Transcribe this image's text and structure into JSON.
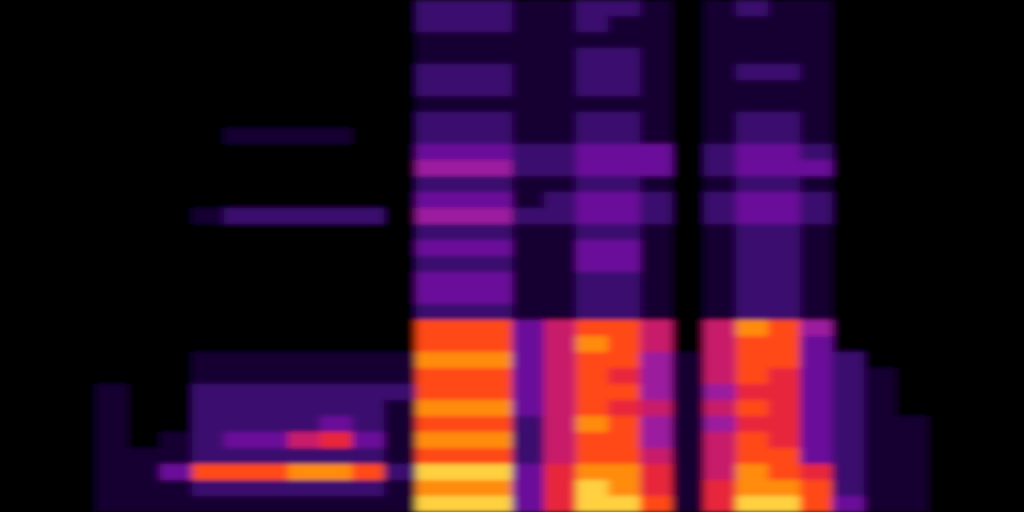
{
  "chart_data": {
    "type": "heatmap",
    "tick_labels": false,
    "color_range": [
      0,
      9
    ],
    "cells": [
      [
        0,
        0,
        0,
        0,
        0,
        0,
        0,
        0,
        0,
        0,
        0,
        0,
        0,
        0,
        0,
        0,
        0,
        0,
        0,
        0,
        0,
        0,
        0,
        0,
        0,
        0,
        0,
        0,
        0,
        0,
        0,
        0
      ],
      [
        0,
        0,
        0,
        0,
        0,
        0,
        0,
        0,
        0,
        0,
        0,
        0,
        0,
        0,
        0,
        0,
        0,
        0,
        0,
        0,
        0,
        0,
        0,
        0,
        0,
        0,
        0,
        0,
        0,
        0,
        0,
        0
      ],
      [
        0,
        0,
        0,
        0,
        0,
        0,
        0,
        0,
        0,
        0,
        0,
        0,
        0,
        0,
        0,
        0,
        0,
        0,
        0,
        0,
        0,
        0,
        0,
        0,
        0,
        0,
        0,
        0,
        0,
        0,
        0,
        0
      ],
      [
        0,
        0,
        0,
        0,
        0,
        0,
        0,
        0,
        0,
        0,
        0,
        0,
        0,
        0,
        0,
        0,
        0,
        0,
        0,
        0,
        0,
        0,
        0,
        0,
        1,
        1,
        1,
        1,
        1,
        1,
        1,
        1
      ],
      [
        0,
        0,
        0,
        0,
        0,
        0,
        0,
        0,
        0,
        0,
        0,
        0,
        0,
        0,
        0,
        0,
        0,
        0,
        0,
        0,
        0,
        0,
        0,
        0,
        0,
        0,
        0,
        0,
        1,
        1,
        1,
        1
      ],
      [
        0,
        0,
        0,
        0,
        0,
        0,
        0,
        0,
        0,
        0,
        0,
        0,
        0,
        0,
        0,
        0,
        0,
        0,
        0,
        0,
        0,
        0,
        0,
        0,
        0,
        0,
        0,
        1,
        1,
        3,
        1,
        1
      ],
      [
        0,
        0,
        0,
        0,
        0,
        0,
        0,
        0,
        0,
        0,
        0,
        0,
        0,
        1,
        0,
        0,
        0,
        0,
        0,
        0,
        0,
        0,
        1,
        1,
        2,
        2,
        2,
        2,
        2,
        7,
        2,
        1
      ],
      [
        0,
        0,
        0,
        0,
        0,
        0,
        0,
        0,
        1,
        0,
        0,
        0,
        0,
        2,
        0,
        0,
        0,
        0,
        0,
        0,
        0,
        0,
        1,
        1,
        2,
        2,
        2,
        3,
        2,
        7,
        2,
        1
      ],
      [
        0,
        0,
        0,
        0,
        0,
        0,
        0,
        0,
        1,
        0,
        0,
        0,
        0,
        2,
        0,
        0,
        0,
        0,
        0,
        0,
        0,
        0,
        1,
        1,
        2,
        2,
        2,
        3,
        2,
        7,
        2,
        1
      ],
      [
        0,
        0,
        0,
        0,
        0,
        0,
        0,
        0,
        1,
        0,
        0,
        0,
        0,
        2,
        0,
        0,
        0,
        0,
        0,
        0,
        0,
        0,
        1,
        1,
        2,
        2,
        2,
        5,
        2,
        8,
        2,
        1
      ],
      [
        0,
        0,
        0,
        0,
        0,
        0,
        0,
        0,
        1,
        0,
        0,
        0,
        0,
        2,
        0,
        0,
        0,
        0,
        0,
        0,
        0,
        0,
        1,
        1,
        2,
        2,
        3,
        6,
        2,
        8,
        2,
        1
      ],
      [
        0,
        0,
        0,
        0,
        0,
        0,
        0,
        0,
        0,
        0,
        0,
        0,
        0,
        2,
        0,
        0,
        0,
        0,
        0,
        0,
        0,
        0,
        1,
        1,
        2,
        2,
        2,
        3,
        2,
        7,
        2,
        1
      ],
      [
        0,
        0,
        0,
        0,
        0,
        0,
        0,
        0,
        0,
        0,
        0,
        0,
        0,
        0,
        0,
        0,
        0,
        0,
        0,
        0,
        0,
        0,
        1,
        1,
        2,
        1,
        1,
        1,
        1,
        2,
        1,
        1
      ],
      [
        2,
        2,
        1,
        1,
        2,
        2,
        1,
        2,
        2,
        3,
        4,
        2,
        3,
        4,
        2,
        3,
        2,
        3,
        3,
        2,
        7,
        7,
        8,
        7,
        7,
        8,
        7,
        8,
        7,
        9,
        8,
        9
      ],
      [
        2,
        2,
        1,
        1,
        2,
        2,
        1,
        2,
        2,
        3,
        4,
        2,
        3,
        4,
        2,
        3,
        2,
        3,
        3,
        2,
        7,
        7,
        8,
        7,
        7,
        8,
        7,
        8,
        7,
        9,
        8,
        9
      ],
      [
        2,
        2,
        1,
        1,
        2,
        2,
        1,
        2,
        2,
        3,
        4,
        2,
        3,
        4,
        2,
        3,
        2,
        3,
        3,
        2,
        7,
        7,
        8,
        7,
        7,
        8,
        7,
        8,
        7,
        9,
        8,
        9
      ],
      [
        1,
        1,
        1,
        1,
        1,
        1,
        1,
        1,
        1,
        2,
        2,
        1,
        1,
        2,
        1,
        1,
        1,
        1,
        1,
        1,
        3,
        3,
        3,
        3,
        3,
        3,
        2,
        2,
        2,
        3,
        3,
        3
      ],
      [
        1,
        1,
        1,
        1,
        1,
        1,
        1,
        1,
        1,
        2,
        2,
        1,
        2,
        2,
        1,
        1,
        1,
        1,
        1,
        1,
        5,
        5,
        5,
        5,
        5,
        5,
        5,
        5,
        5,
        6,
        6,
        6
      ],
      [
        2,
        2,
        1,
        2,
        2,
        2,
        1,
        2,
        2,
        3,
        3,
        2,
        3,
        3,
        2,
        3,
        3,
        2,
        2,
        2,
        7,
        8,
        7,
        7,
        7,
        7,
        8,
        7,
        7,
        8,
        9,
        9
      ],
      [
        2,
        1,
        1,
        2,
        2,
        2,
        1,
        2,
        2,
        3,
        3,
        2,
        3,
        3,
        2,
        3,
        3,
        2,
        2,
        2,
        7,
        7,
        7,
        6,
        7,
        6,
        7,
        7,
        7,
        8,
        8,
        9
      ],
      [
        1,
        1,
        1,
        1,
        1,
        1,
        1,
        1,
        1,
        3,
        3,
        1,
        2,
        2,
        1,
        1,
        1,
        1,
        1,
        1,
        5,
        5,
        4,
        4,
        4,
        5,
        4,
        4,
        5,
        6,
        6,
        7
      ],
      [
        0,
        0,
        0,
        0,
        0,
        0,
        0,
        0,
        0,
        0,
        0,
        0,
        0,
        0,
        0,
        0,
        0,
        0,
        0,
        0,
        0,
        0,
        1,
        1,
        1,
        1,
        1,
        1,
        1,
        1,
        1,
        1
      ],
      [
        1,
        1,
        1,
        1,
        1,
        1,
        1,
        1,
        1,
        2,
        2,
        1,
        2,
        2,
        1,
        1,
        1,
        1,
        1,
        1,
        5,
        5,
        5,
        5,
        4,
        5,
        4,
        5,
        5,
        5,
        6,
        6
      ],
      [
        2,
        1,
        1,
        1,
        2,
        1,
        1,
        2,
        2,
        3,
        3,
        2,
        3,
        3,
        2,
        2,
        2,
        2,
        2,
        2,
        8,
        7,
        7,
        7,
        6,
        7,
        6,
        7,
        7,
        8,
        8,
        9
      ],
      [
        1,
        1,
        1,
        1,
        2,
        1,
        1,
        2,
        2,
        3,
        3,
        2,
        3,
        3,
        2,
        2,
        2,
        2,
        2,
        2,
        7,
        7,
        7,
        6,
        6,
        6,
        6,
        6,
        7,
        7,
        8,
        9
      ],
      [
        1,
        1,
        1,
        1,
        1,
        1,
        1,
        1,
        1,
        2,
        3,
        1,
        2,
        2,
        1,
        1,
        1,
        1,
        1,
        1,
        4,
        3,
        3,
        3,
        3,
        3,
        3,
        3,
        3,
        6,
        7,
        7
      ],
      [
        0,
        0,
        0,
        0,
        0,
        0,
        0,
        0,
        0,
        0,
        0,
        0,
        0,
        0,
        0,
        0,
        0,
        0,
        0,
        0,
        0,
        0,
        2,
        2,
        2,
        2,
        2,
        2,
        2,
        2,
        2,
        3
      ],
      [
        0,
        0,
        0,
        0,
        0,
        0,
        0,
        0,
        0,
        0,
        0,
        0,
        0,
        0,
        0,
        0,
        0,
        0,
        0,
        0,
        0,
        0,
        0,
        1,
        1,
        1,
        1,
        1,
        1,
        1,
        1,
        1
      ],
      [
        0,
        0,
        0,
        0,
        0,
        0,
        0,
        0,
        0,
        0,
        0,
        0,
        0,
        0,
        0,
        0,
        0,
        0,
        0,
        0,
        0,
        0,
        0,
        0,
        0,
        0,
        1,
        1,
        1,
        1,
        1,
        1
      ],
      [
        0,
        0,
        0,
        0,
        0,
        0,
        0,
        0,
        0,
        0,
        0,
        0,
        0,
        0,
        0,
        0,
        0,
        0,
        0,
        0,
        0,
        0,
        0,
        0,
        0,
        0,
        0,
        0,
        0,
        0,
        0,
        0
      ],
      [
        0,
        0,
        0,
        0,
        0,
        0,
        0,
        0,
        0,
        0,
        0,
        0,
        0,
        0,
        0,
        0,
        0,
        0,
        0,
        0,
        0,
        0,
        0,
        0,
        0,
        0,
        0,
        0,
        0,
        0,
        0,
        0
      ],
      [
        0,
        0,
        0,
        0,
        0,
        0,
        0,
        0,
        0,
        0,
        0,
        0,
        0,
        0,
        0,
        0,
        0,
        0,
        0,
        0,
        0,
        0,
        0,
        0,
        0,
        0,
        0,
        0,
        0,
        0,
        0,
        0
      ]
    ]
  }
}
